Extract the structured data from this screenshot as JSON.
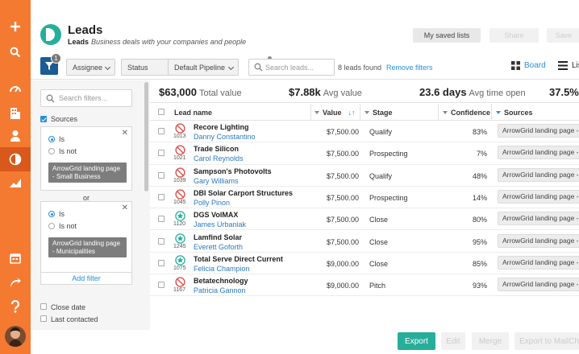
{
  "header": {
    "title": "Leads",
    "subtitle_bold": "Leads",
    "subtitle_text": "Business deals with your companies and people",
    "buttons": [
      "My saved lists",
      "Share",
      "Save"
    ]
  },
  "toolbar": {
    "filter_count": "1",
    "assignee": "Assignee",
    "status": "Status",
    "pipeline": "Default Pipeline",
    "search_placeholder": "Search leads...",
    "found": "8 leads found",
    "remove_filters": "Remove filters",
    "board": "Board",
    "list": "List"
  },
  "filters": {
    "search_placeholder": "Search filters...",
    "sources_label": "Sources",
    "box1": {
      "is": "Is",
      "is_not": "Is not",
      "chip": "ArrowGrid landing page - Small Business"
    },
    "or": "or",
    "box2": {
      "is": "Is",
      "is_not": "Is not",
      "chip": "ArrowGrid landing page - Municipalities"
    },
    "add_filter": "Add filter",
    "close_date": "Close date",
    "last_contacted": "Last contacted",
    "close_icon": "close-icon"
  },
  "stats": {
    "total_value": "$63,000",
    "total_value_label": "Total value",
    "avg_value": "$7.88k",
    "avg_value_label": "Avg value",
    "avg_time": "23.6 days",
    "avg_time_label": "Avg time open",
    "conversion": "37.5%"
  },
  "columns": {
    "name": "Lead name",
    "value": "Value",
    "stage": "Stage",
    "confidence": "Confidence",
    "sources": "Sources"
  },
  "rows": [
    {
      "id": "1013",
      "name": "Recore Lighting",
      "contact": "Danny Constantino",
      "value": "$7,500.00",
      "stage": "Qualify",
      "confidence": "83%",
      "source": "ArrowGrid landing page - Small Business",
      "icon": "no-entry-icon"
    },
    {
      "id": "1021",
      "name": "Trade Silicon",
      "contact": "Carol Reynolds",
      "value": "$7,500.00",
      "stage": "Prospecting",
      "confidence": "7%",
      "source": "ArrowGrid landing page - Small Business",
      "icon": "no-entry-icon"
    },
    {
      "id": "1039",
      "name": "Sampson's Photovolts",
      "contact": "Gary Williams",
      "value": "$7,500.00",
      "stage": "Qualify",
      "confidence": "48%",
      "source": "ArrowGrid landing page - Small Business",
      "icon": "no-entry-icon"
    },
    {
      "id": "1045",
      "name": "DBI Solar Carport Structures",
      "contact": "Polly Pinon",
      "value": "$7,500.00",
      "stage": "Prospecting",
      "confidence": "14%",
      "source": "ArrowGrid landing page - Small Business",
      "icon": "no-entry-icon"
    },
    {
      "id": "1120",
      "name": "DGS VolMAX",
      "contact": "James Urbaniak",
      "value": "$7,500.00",
      "stage": "Close",
      "confidence": "80%",
      "source": "ArrowGrid landing page - Municipalities",
      "icon": "star-icon"
    },
    {
      "id": "1245",
      "name": "Lamfind Solar",
      "contact": "Everett Goforth",
      "value": "$7,500.00",
      "stage": "Close",
      "confidence": "95%",
      "source": "ArrowGrid landing page - Municipalities",
      "icon": "star-icon"
    },
    {
      "id": "1075",
      "name": "Total Serve Direct Current",
      "contact": "Felicia Champion",
      "value": "$9,000.00",
      "stage": "Close",
      "confidence": "85%",
      "source": "ArrowGrid landing page - Municipalities",
      "icon": "star-icon"
    },
    {
      "id": "1167",
      "name": "Betatechnology",
      "contact": "Patricia Gannon",
      "value": "$9,000.00",
      "stage": "Pitch",
      "confidence": "93%",
      "source": "ArrowGrid landing page - Municipalities",
      "icon": "no-entry-icon"
    }
  ],
  "footer": {
    "export": "Export",
    "edit": "Edit",
    "merge": "Merge",
    "mailchimp": "Export to MailChimp"
  },
  "colors": {
    "sidebar": "#f47a32",
    "accent": "#2a8fd8",
    "export": "#27ae9a",
    "logo": "#27ae9a"
  }
}
